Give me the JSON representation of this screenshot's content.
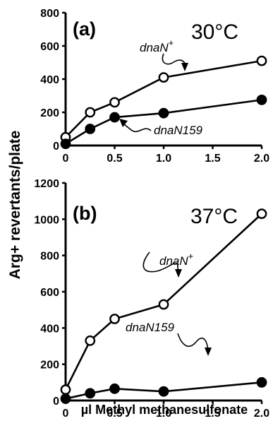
{
  "figure": {
    "ylabel": "Arg+ revertants/plate",
    "xlabel": "µl Methyl methanesulfonate"
  },
  "chart_data": [
    {
      "type": "line",
      "panel_label": "(a)",
      "temperature": "30°C",
      "x": [
        0,
        0.25,
        0.5,
        1.0,
        2.0
      ],
      "xlim": [
        0,
        2.0
      ],
      "xticks": [
        "0",
        "0.5",
        "1.0",
        "1.5",
        "2.0"
      ],
      "ylim": [
        0,
        800
      ],
      "yticks": [
        "0",
        "200",
        "400",
        "600",
        "800"
      ],
      "grid": false,
      "series": [
        {
          "name": "dnaN+",
          "marker": "open-circle",
          "values": [
            50,
            200,
            260,
            410,
            510
          ]
        },
        {
          "name": "dnaN159",
          "marker": "filled-circle",
          "values": [
            10,
            100,
            170,
            195,
            275
          ]
        }
      ],
      "annotations": [
        {
          "text": "dnaN",
          "superscript": "+",
          "series": "dnaN+"
        },
        {
          "text": "dnaN159",
          "series": "dnaN159"
        }
      ]
    },
    {
      "type": "line",
      "panel_label": "(b)",
      "temperature": "37°C",
      "x": [
        0,
        0.25,
        0.5,
        1.0,
        2.0
      ],
      "xlim": [
        0,
        2.0
      ],
      "xticks": [
        "0",
        "0.5",
        "1.0",
        "1.5",
        "2.0"
      ],
      "ylim": [
        0,
        1200
      ],
      "yticks": [
        "0",
        "200",
        "400",
        "600",
        "800",
        "1000",
        "1200"
      ],
      "grid": false,
      "series": [
        {
          "name": "dnaN+",
          "marker": "open-circle",
          "values": [
            60,
            330,
            450,
            530,
            1030
          ]
        },
        {
          "name": "dnaN159",
          "marker": "filled-circle",
          "values": [
            10,
            40,
            65,
            50,
            100
          ]
        }
      ],
      "annotations": [
        {
          "text": "dnaN",
          "superscript": "+",
          "series": "dnaN+"
        },
        {
          "text": "dnaN159",
          "series": "dnaN159"
        }
      ]
    }
  ]
}
